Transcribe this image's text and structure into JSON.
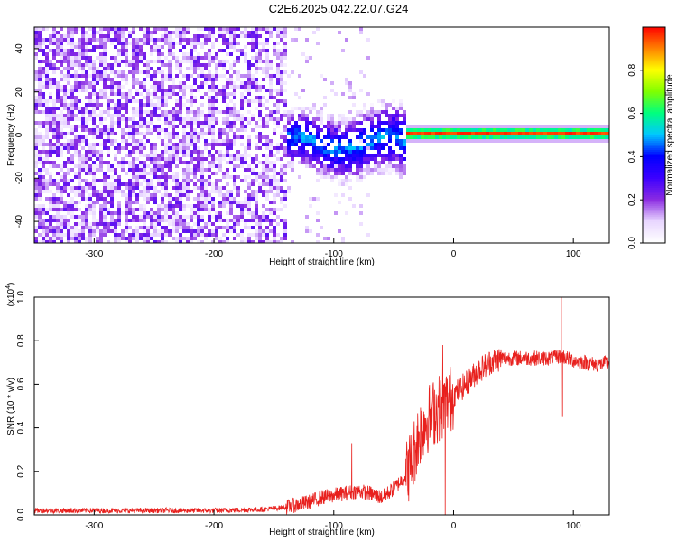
{
  "title": "C2E6.2025.042.22.07.G24",
  "chart_data": [
    {
      "type": "heatmap",
      "name": "spectrogram",
      "xlabel": "Height of straight line (km)",
      "ylabel": "Frequency (Hz)",
      "xlim": [
        -350,
        130
      ],
      "ylim": [
        -50,
        50
      ],
      "xticks": [
        -300,
        -200,
        -100,
        0,
        100
      ],
      "yticks": [
        -40,
        -20,
        0,
        20,
        40
      ],
      "colorbar": {
        "label": "Normalized spectral amplitude",
        "range": [
          0,
          1
        ],
        "ticks": [
          0.0,
          0.2,
          0.4,
          0.6,
          0.8
        ],
        "tick_labels": [
          "0.0",
          "0.2",
          "0.4",
          "0.6",
          "0.8"
        ],
        "colormap": [
          "#ffffff",
          "#e8d5ff",
          "#8a2be2",
          "#3b00ff",
          "#0000ff",
          "#00c8ff",
          "#00ff7f",
          "#80ff00",
          "#ffff00",
          "#ff8000",
          "#ff0000"
        ]
      },
      "description_of_signal": [
        {
          "x_range": [
            -350,
            -140
          ],
          "freq_range": [
            -50,
            50
          ],
          "amplitude": 0.15,
          "pattern": "broadband noise"
        },
        {
          "x_range": [
            -140,
            -40
          ],
          "freq_center": -3,
          "freq_halfwidth": 12,
          "amplitude": 0.3
        },
        {
          "x_range": [
            -40,
            130
          ],
          "freq_center": 1.5,
          "freq_halfwidth": 1.5,
          "amplitude": 0.95
        }
      ]
    },
    {
      "type": "line",
      "name": "snr",
      "xlabel": "Height of straight line (km)",
      "ylabel": "SNR (10 * v/v)",
      "multiplier_label": "(x10",
      "multiplier_exp": "4",
      "xlim": [
        -350,
        130
      ],
      "ylim": [
        0,
        1.0
      ],
      "xticks": [
        -300,
        -200,
        -100,
        0,
        100
      ],
      "yticks": [
        0.0,
        0.2,
        0.4,
        0.6,
        0.8,
        1.0
      ],
      "ytick_labels": [
        "0.0",
        "0.2",
        "0.4",
        "0.6",
        "0.8",
        "1.0"
      ],
      "color": "#e8201d",
      "x": [
        -350,
        -300,
        -250,
        -200,
        -160,
        -140,
        -120,
        -110,
        -100,
        -90,
        -80,
        -70,
        -60,
        -50,
        -40,
        -35,
        -30,
        -25,
        -20,
        -15,
        -10,
        -5,
        0,
        10,
        20,
        30,
        40,
        60,
        80,
        90,
        100,
        110,
        120,
        130
      ],
      "y": [
        0.02,
        0.02,
        0.02,
        0.02,
        0.025,
        0.035,
        0.06,
        0.08,
        0.09,
        0.1,
        0.11,
        0.1,
        0.08,
        0.12,
        0.18,
        0.25,
        0.35,
        0.42,
        0.45,
        0.48,
        0.5,
        0.52,
        0.55,
        0.6,
        0.66,
        0.7,
        0.72,
        0.72,
        0.72,
        0.73,
        0.71,
        0.7,
        0.69,
        0.7
      ],
      "spikes": [
        {
          "x": -85,
          "y": 0.33
        },
        {
          "x": -9,
          "y": 0.78
        },
        {
          "x": -7,
          "y": 0.0
        },
        {
          "x": 90,
          "y": 1.0
        },
        {
          "x": 91,
          "y": 0.45
        }
      ]
    }
  ]
}
